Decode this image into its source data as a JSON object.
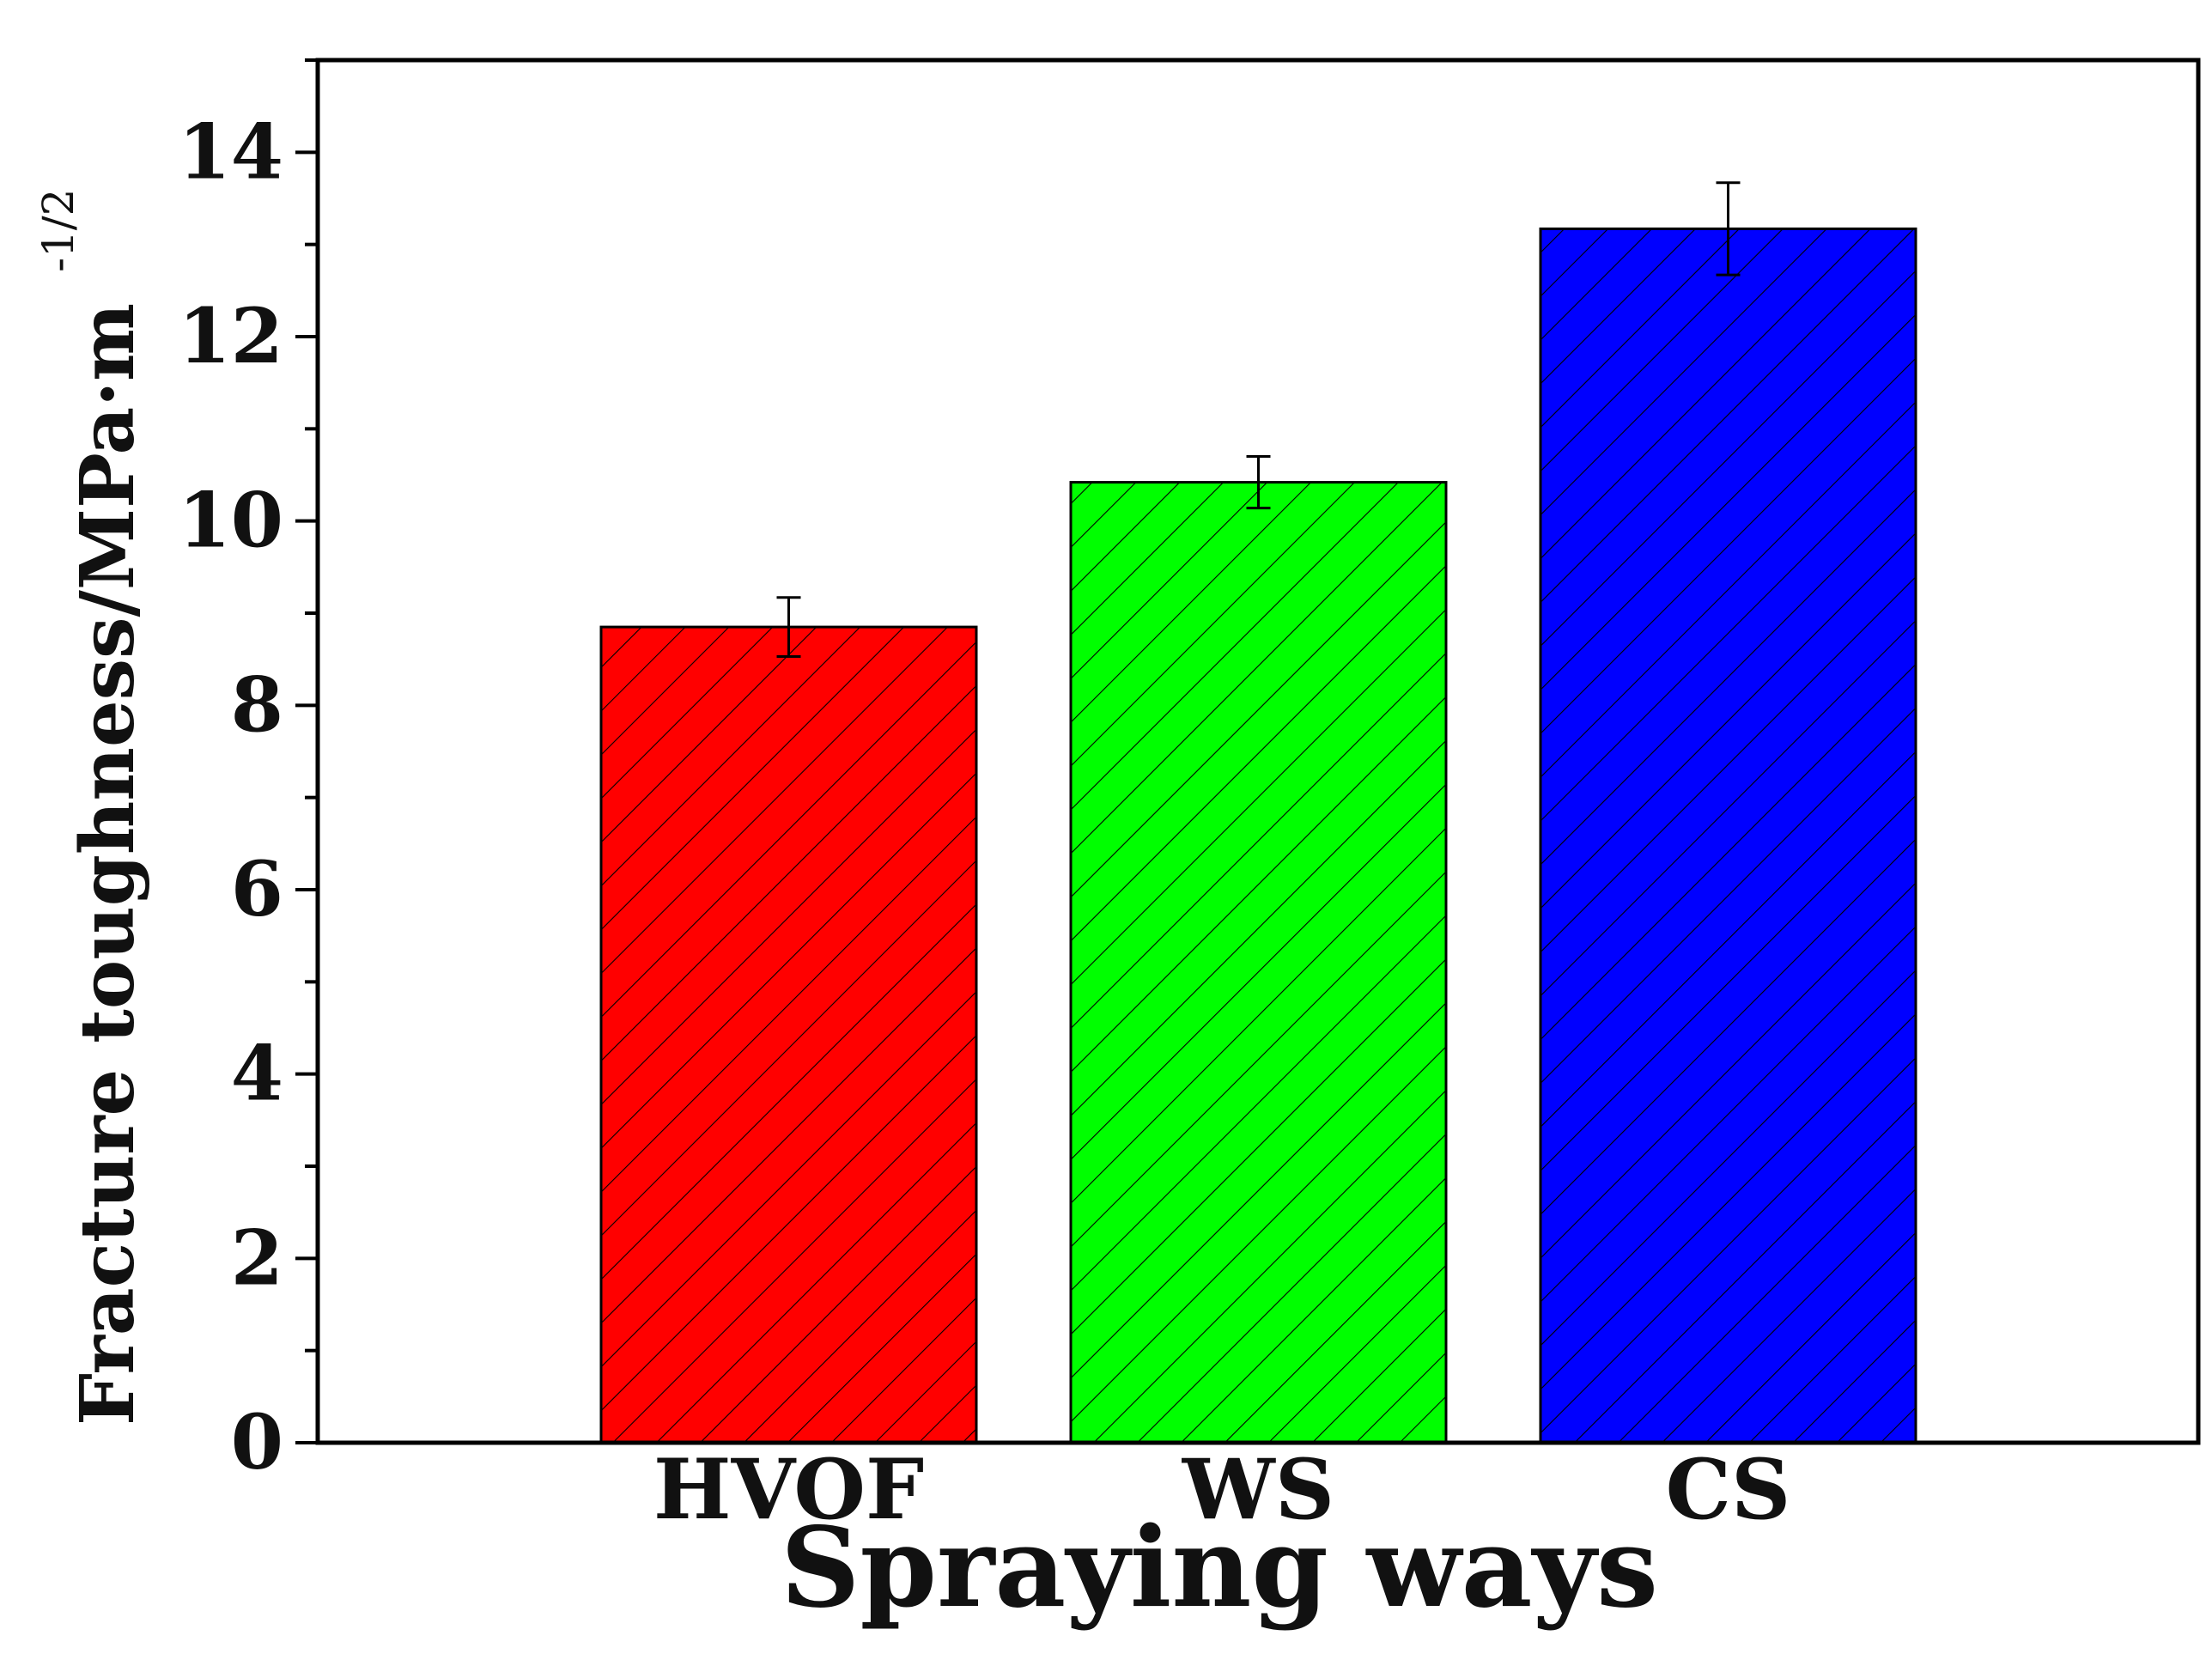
{
  "chart_data": {
    "type": "bar",
    "title": "",
    "xlabel": "Spraying ways",
    "ylabel": "Fracture toughness/MPa·m",
    "ylabel_superscript": "-1/2",
    "categories": [
      "HVOF",
      "WS",
      "CS"
    ],
    "values": [
      8.85,
      10.42,
      13.17
    ],
    "errors": [
      0.32,
      0.28,
      0.5
    ],
    "colors": [
      "#ff0000",
      "#00ff00",
      "#0000ff"
    ],
    "pattern": "diagonal-hatch",
    "ylim": [
      0,
      15
    ],
    "yticks": [
      0,
      2,
      4,
      6,
      8,
      10,
      12,
      14
    ],
    "yticks_minor_step": 1,
    "grid": false,
    "legend": "none"
  }
}
